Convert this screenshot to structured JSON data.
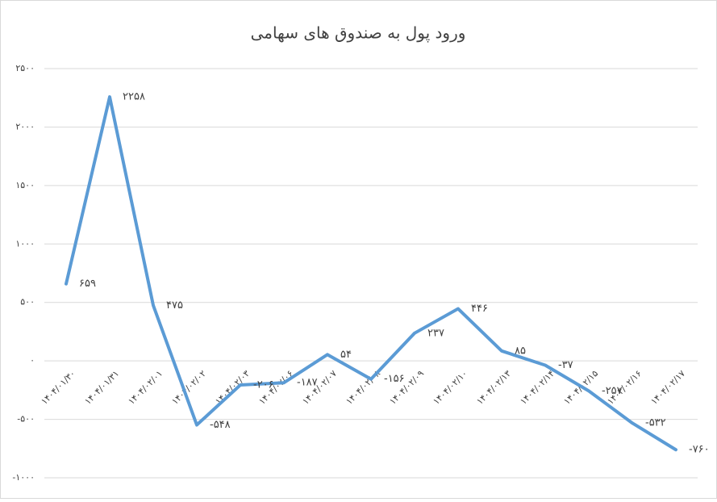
{
  "chart_data": {
    "type": "line",
    "title": "ورود پول به صندوق های سهامی",
    "categories": [
      "۱۴۰۴/۰۱/۳۰",
      "۱۴۰۴/۰۱/۳۱",
      "۱۴۰۴/۰۲/۰۱",
      "۱۴۰۴/۰۲/۰۲",
      "۱۴۰۴/۰۲/۰۳",
      "۱۴۰۴/۰۲/۰۶",
      "۱۴۰۴/۰۲/۰۷",
      "۱۴۰۴/۰۲/۰۸",
      "۱۴۰۴/۰۲/۰۹",
      "۱۴۰۴/۰۲/۱۰",
      "۱۴۰۴/۰۲/۱۳",
      "۱۴۰۴/۰۲/۱۴",
      "۱۴۰۴/۰۲/۱۵",
      "۱۴۰۴/۰۲/۱۶",
      "۱۴۰۴/۰۲/۱۷"
    ],
    "values": [
      659,
      2258,
      475,
      -548,
      -206,
      -187,
      54,
      -156,
      237,
      446,
      85,
      -37,
      -257,
      -532,
      -760
    ],
    "value_labels": [
      "۶۵۹",
      "۲۲۵۸",
      "۴۷۵",
      "-۵۴۸",
      "-۲۰۶",
      "-۱۸۷",
      "۵۴",
      "-۱۵۶",
      "۲۳۷",
      "۴۴۶",
      "۸۵",
      "-۳۷",
      "-۲۵۷",
      "-۵۳۲",
      "-۷۶۰"
    ],
    "color": "#5b9bd5",
    "ylim": [
      -1000,
      2500
    ],
    "yticks": [
      {
        "value": -1000,
        "label": "-۱۰۰۰"
      },
      {
        "value": -500,
        "label": "-۵۰۰"
      },
      {
        "value": 0,
        "label": "۰"
      },
      {
        "value": 500,
        "label": "۵۰۰"
      },
      {
        "value": 1000,
        "label": "۱۰۰۰"
      },
      {
        "value": 1500,
        "label": "۱۵۰۰"
      },
      {
        "value": 2000,
        "label": "۲۰۰۰"
      },
      {
        "value": 2500,
        "label": "۲۵۰۰"
      }
    ],
    "grid": true
  }
}
